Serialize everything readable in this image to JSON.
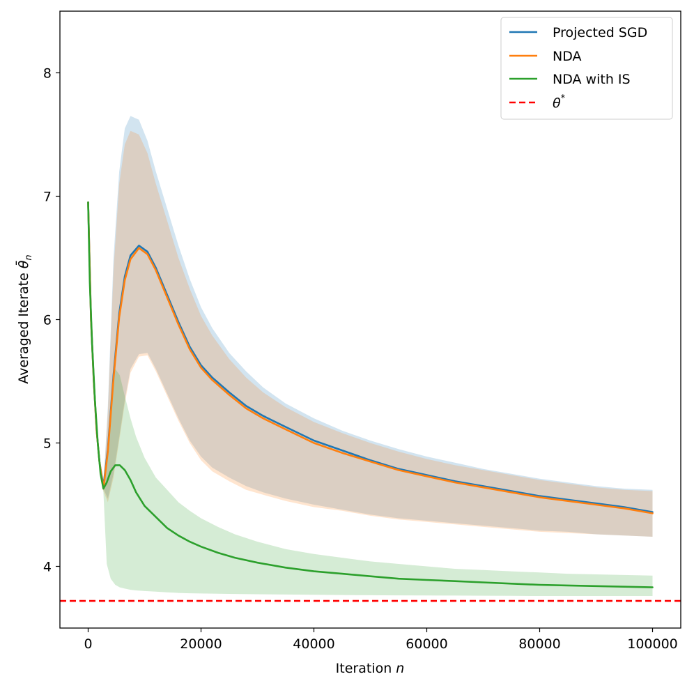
{
  "chart_data": {
    "type": "line",
    "title": "",
    "xlabel": "Iteration",
    "xlabel_var": "n",
    "ylabel": "Averaged Iterate",
    "ylabel_var": "θ̄",
    "ylabel_sub": "n",
    "xlim": [
      -5000,
      105000
    ],
    "ylim": [
      3.5,
      8.5
    ],
    "xticks": [
      0,
      20000,
      40000,
      60000,
      80000,
      100000
    ],
    "xtick_labels": [
      "0",
      "20000",
      "40000",
      "60000",
      "80000",
      "100000"
    ],
    "yticks": [
      4,
      5,
      6,
      7,
      8
    ],
    "ytick_labels": [
      "4",
      "5",
      "6",
      "7",
      "8"
    ],
    "grid": false,
    "legend_position": "top-right",
    "legend": [
      {
        "label": "Projected SGD",
        "color": "#1f77b4",
        "style": "solid"
      },
      {
        "label": "NDA",
        "color": "#ff7f0e",
        "style": "solid"
      },
      {
        "label": "NDA with IS",
        "color": "#2ca02c",
        "style": "solid"
      },
      {
        "label_base": "θ",
        "label_sup": "*",
        "color": "#ff0000",
        "style": "dashed"
      }
    ],
    "series": [
      {
        "name": "Projected SGD",
        "color": "#1f77b4",
        "band_opacity": 0.2,
        "x": [
          0,
          500,
          1000,
          1500,
          2000,
          2700,
          3500,
          4500,
          5500,
          6500,
          7500,
          9000,
          10500,
          12000,
          14000,
          16000,
          18000,
          20000,
          22000,
          25000,
          28000,
          31000,
          35000,
          40000,
          45000,
          50000,
          55000,
          60000,
          65000,
          70000,
          75000,
          80000,
          85000,
          90000,
          95000,
          100000
        ],
        "mean": [
          6.95,
          6.0,
          5.5,
          5.1,
          4.85,
          4.65,
          4.95,
          5.55,
          6.05,
          6.35,
          6.52,
          6.6,
          6.55,
          6.42,
          6.2,
          5.98,
          5.78,
          5.63,
          5.53,
          5.41,
          5.3,
          5.22,
          5.13,
          5.02,
          4.94,
          4.86,
          4.79,
          4.74,
          4.69,
          4.65,
          4.61,
          4.57,
          4.54,
          4.51,
          4.48,
          4.44
        ],
        "upper": [
          6.95,
          6.0,
          5.5,
          5.1,
          4.85,
          4.66,
          5.3,
          6.5,
          7.2,
          7.55,
          7.65,
          7.62,
          7.45,
          7.2,
          6.9,
          6.6,
          6.33,
          6.1,
          5.93,
          5.73,
          5.58,
          5.45,
          5.32,
          5.2,
          5.1,
          5.02,
          4.95,
          4.89,
          4.84,
          4.79,
          4.75,
          4.71,
          4.68,
          4.65,
          4.63,
          4.62
        ],
        "lower": [
          6.95,
          6.0,
          5.5,
          5.1,
          4.85,
          4.63,
          4.55,
          4.75,
          5.05,
          5.35,
          5.6,
          5.72,
          5.73,
          5.6,
          5.4,
          5.2,
          5.02,
          4.89,
          4.8,
          4.72,
          4.65,
          4.6,
          4.55,
          4.5,
          4.46,
          4.42,
          4.39,
          4.37,
          4.35,
          4.33,
          4.31,
          4.29,
          4.28,
          4.26,
          4.25,
          4.24
        ]
      },
      {
        "name": "NDA",
        "color": "#ff7f0e",
        "band_opacity": 0.2,
        "x": [
          0,
          500,
          1000,
          1500,
          2000,
          2700,
          3500,
          4500,
          5500,
          6500,
          7500,
          9000,
          10500,
          12000,
          14000,
          16000,
          18000,
          20000,
          22000,
          25000,
          28000,
          31000,
          35000,
          40000,
          45000,
          50000,
          55000,
          60000,
          65000,
          70000,
          75000,
          80000,
          85000,
          90000,
          95000,
          100000
        ],
        "mean": [
          6.95,
          6.0,
          5.5,
          5.1,
          4.85,
          4.63,
          4.93,
          5.52,
          6.02,
          6.32,
          6.49,
          6.58,
          6.53,
          6.4,
          6.18,
          5.96,
          5.76,
          5.61,
          5.51,
          5.39,
          5.28,
          5.2,
          5.11,
          5.0,
          4.92,
          4.85,
          4.78,
          4.73,
          4.68,
          4.64,
          4.6,
          4.56,
          4.53,
          4.5,
          4.47,
          4.43
        ],
        "upper": [
          6.95,
          6.0,
          5.5,
          5.1,
          4.85,
          4.64,
          5.25,
          6.4,
          7.1,
          7.42,
          7.53,
          7.5,
          7.35,
          7.1,
          6.8,
          6.5,
          6.25,
          6.03,
          5.87,
          5.68,
          5.53,
          5.41,
          5.29,
          5.17,
          5.08,
          5.0,
          4.93,
          4.87,
          4.82,
          4.78,
          4.74,
          4.7,
          4.67,
          4.64,
          4.62,
          4.61
        ],
        "lower": [
          6.95,
          6.0,
          5.5,
          5.1,
          4.85,
          4.61,
          4.52,
          4.72,
          5.02,
          5.32,
          5.57,
          5.7,
          5.71,
          5.58,
          5.38,
          5.18,
          5.0,
          4.86,
          4.77,
          4.69,
          4.62,
          4.58,
          4.53,
          4.48,
          4.45,
          4.41,
          4.38,
          4.36,
          4.34,
          4.32,
          4.3,
          4.28,
          4.27,
          4.26,
          4.25,
          4.24
        ]
      },
      {
        "name": "NDA with IS",
        "color": "#2ca02c",
        "band_opacity": 0.2,
        "x": [
          0,
          300,
          700,
          1200,
          1700,
          2200,
          2700,
          3300,
          4000,
          4800,
          5600,
          6500,
          7500,
          8500,
          10000,
          12000,
          14000,
          16000,
          18000,
          20000,
          23000,
          26000,
          30000,
          35000,
          40000,
          45000,
          50000,
          55000,
          60000,
          65000,
          70000,
          75000,
          80000,
          85000,
          90000,
          95000,
          100000
        ],
        "mean": [
          6.95,
          6.3,
          5.8,
          5.35,
          5.0,
          4.75,
          4.63,
          4.68,
          4.77,
          4.82,
          4.82,
          4.78,
          4.7,
          4.6,
          4.49,
          4.4,
          4.31,
          4.25,
          4.2,
          4.16,
          4.11,
          4.07,
          4.03,
          3.99,
          3.96,
          3.94,
          3.92,
          3.9,
          3.89,
          3.88,
          3.87,
          3.86,
          3.85,
          3.845,
          3.84,
          3.835,
          3.83
        ],
        "upper": [
          6.95,
          6.3,
          5.8,
          5.35,
          5.0,
          4.75,
          4.65,
          4.85,
          5.3,
          5.6,
          5.55,
          5.38,
          5.2,
          5.05,
          4.88,
          4.72,
          4.62,
          4.52,
          4.45,
          4.39,
          4.32,
          4.26,
          4.2,
          4.14,
          4.1,
          4.07,
          4.04,
          4.02,
          4.0,
          3.98,
          3.97,
          3.96,
          3.95,
          3.94,
          3.935,
          3.93,
          3.925
        ],
        "lower": [
          6.95,
          6.3,
          5.8,
          5.35,
          5.0,
          4.75,
          4.6,
          4.02,
          3.9,
          3.85,
          3.83,
          3.82,
          3.81,
          3.805,
          3.8,
          3.795,
          3.79,
          3.785,
          3.782,
          3.78,
          3.778,
          3.776,
          3.774,
          3.772,
          3.77,
          3.768,
          3.766,
          3.765,
          3.764,
          3.763,
          3.762,
          3.761,
          3.76,
          3.76,
          3.76,
          3.76,
          3.76
        ]
      }
    ],
    "reference_line": {
      "name": "θ*",
      "y": 3.72,
      "color": "#ff0000",
      "style": "dashed"
    }
  }
}
